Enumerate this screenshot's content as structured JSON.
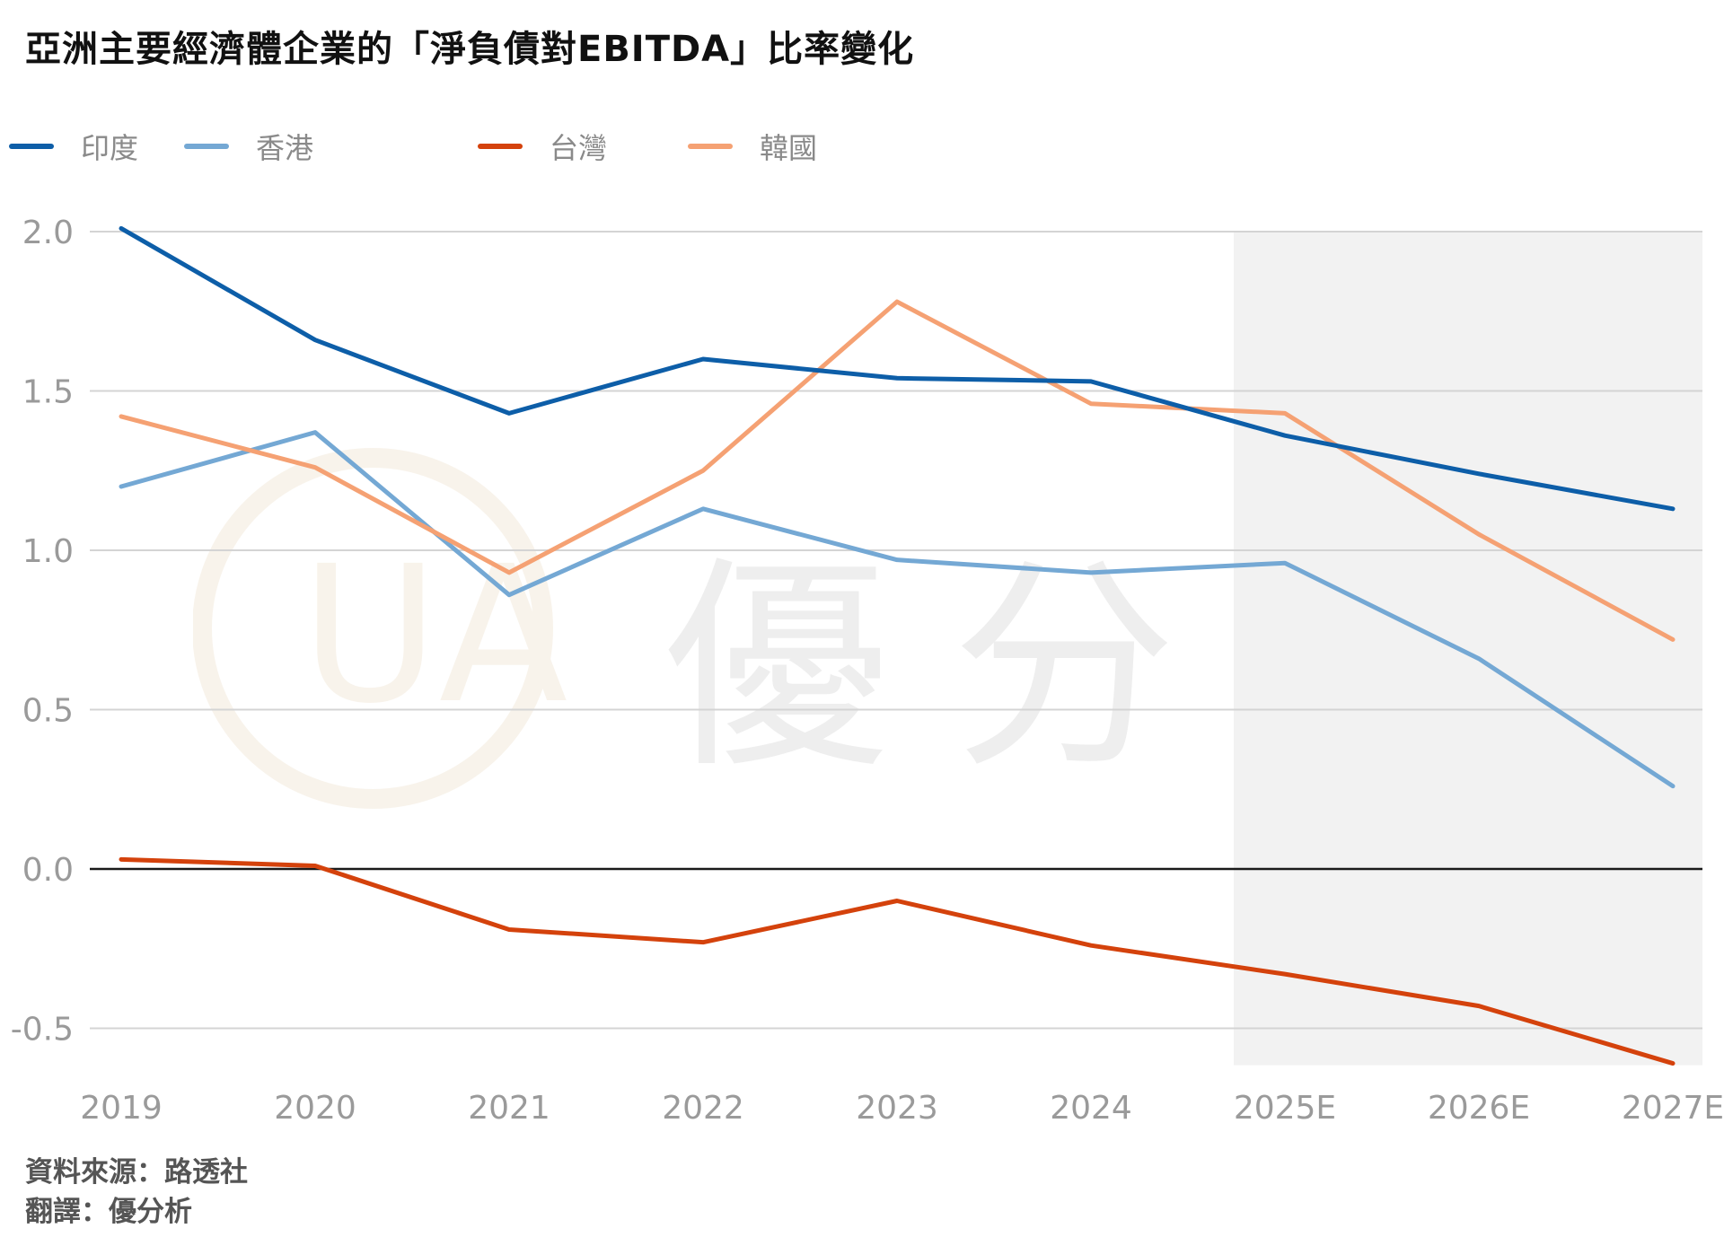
{
  "title": "亞洲主要經濟體企業的「淨負債對EBITDA」比率變化",
  "watermark": {
    "text": "優分析",
    "logo_text": "UA"
  },
  "footer": {
    "source": "資料來源：路透社",
    "translation": "翻譯：優分析"
  },
  "colors": {
    "india": "#0d5ea8",
    "hongkong": "#74a8d4",
    "taiwan": "#d4420c",
    "korea": "#f5a173",
    "forecast_band": "#f2f2f2",
    "grid": "#d4d4d4",
    "zero_line": "#1a1a1a"
  },
  "chart_data": {
    "type": "line",
    "title": "亞洲主要經濟體企業的「淨負債對EBITDA」比率變化",
    "xlabel": "",
    "ylabel": "",
    "categories": [
      "2019",
      "2020",
      "2021",
      "2022",
      "2023",
      "2024",
      "2025E",
      "2026E",
      "2027E"
    ],
    "ylim": [
      -0.6,
      2.0
    ],
    "yticks": [
      2.0,
      1.5,
      1.0,
      0.5,
      0.0,
      -0.5
    ],
    "ytick_labels": [
      "2.0",
      "1.5",
      "1.0",
      "0.5",
      "0.0",
      "-0.5"
    ],
    "grid": true,
    "legend_position": "top-left",
    "forecast_region": [
      "2025E",
      "2027E"
    ],
    "series": [
      {
        "name": "印度",
        "key": "india",
        "values": [
          2.01,
          1.66,
          1.43,
          1.6,
          1.54,
          1.53,
          1.36,
          1.24,
          1.13
        ]
      },
      {
        "name": "香港",
        "key": "hongkong",
        "values": [
          1.2,
          1.37,
          0.86,
          1.13,
          0.97,
          0.93,
          0.96,
          0.66,
          0.26
        ]
      },
      {
        "name": "台灣",
        "key": "taiwan",
        "values": [
          0.03,
          0.01,
          -0.19,
          -0.23,
          -0.1,
          -0.24,
          -0.33,
          -0.43,
          -0.61
        ]
      },
      {
        "name": "韓國",
        "key": "korea",
        "values": [
          1.42,
          1.26,
          0.93,
          1.25,
          1.78,
          1.46,
          1.43,
          1.05,
          0.72
        ]
      }
    ]
  }
}
